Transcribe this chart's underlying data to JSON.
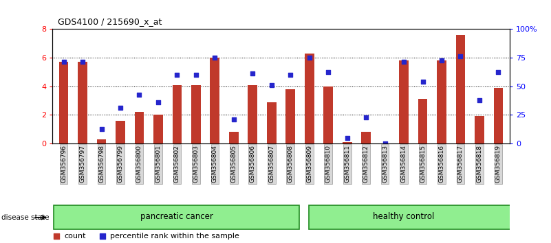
{
  "title": "GDS4100 / 215690_x_at",
  "samples": [
    "GSM356796",
    "GSM356797",
    "GSM356798",
    "GSM356799",
    "GSM356800",
    "GSM356801",
    "GSM356802",
    "GSM356803",
    "GSM356804",
    "GSM356805",
    "GSM356806",
    "GSM356807",
    "GSM356808",
    "GSM356809",
    "GSM356810",
    "GSM356811",
    "GSM356812",
    "GSM356813",
    "GSM356814",
    "GSM356815",
    "GSM356816",
    "GSM356817",
    "GSM356818",
    "GSM356819"
  ],
  "bar_values": [
    5.7,
    5.7,
    0.3,
    1.6,
    2.2,
    2.0,
    4.1,
    4.1,
    6.0,
    0.8,
    4.1,
    2.9,
    3.8,
    6.3,
    4.0,
    0.1,
    0.8,
    0.0,
    5.8,
    3.1,
    5.8,
    7.6,
    1.9,
    3.9
  ],
  "dot_values": [
    5.7,
    5.7,
    1.0,
    2.5,
    3.4,
    2.9,
    4.8,
    4.8,
    6.0,
    1.7,
    4.9,
    4.1,
    4.8,
    6.0,
    5.0,
    0.4,
    1.8,
    0.0,
    5.7,
    4.3,
    5.8,
    6.1,
    3.0,
    5.0
  ],
  "bar_color": "#c0392b",
  "dot_color": "#2525cc",
  "ylim_left": [
    0,
    8
  ],
  "ylim_right": [
    0,
    100
  ],
  "yticks_left": [
    0,
    2,
    4,
    6,
    8
  ],
  "yticks_right": [
    0,
    25,
    50,
    75,
    100
  ],
  "ytick_labels_right": [
    "0",
    "25",
    "50",
    "75",
    "100%"
  ],
  "group1_label": "pancreatic cancer",
  "group2_label": "healthy control",
  "group1_count": 13,
  "group2_count": 11,
  "disease_state_label": "disease state",
  "legend_bar_label": "count",
  "legend_dot_label": "percentile rank within the sample",
  "group_bg_color": "#90ee90",
  "group_border_color": "#228B22"
}
